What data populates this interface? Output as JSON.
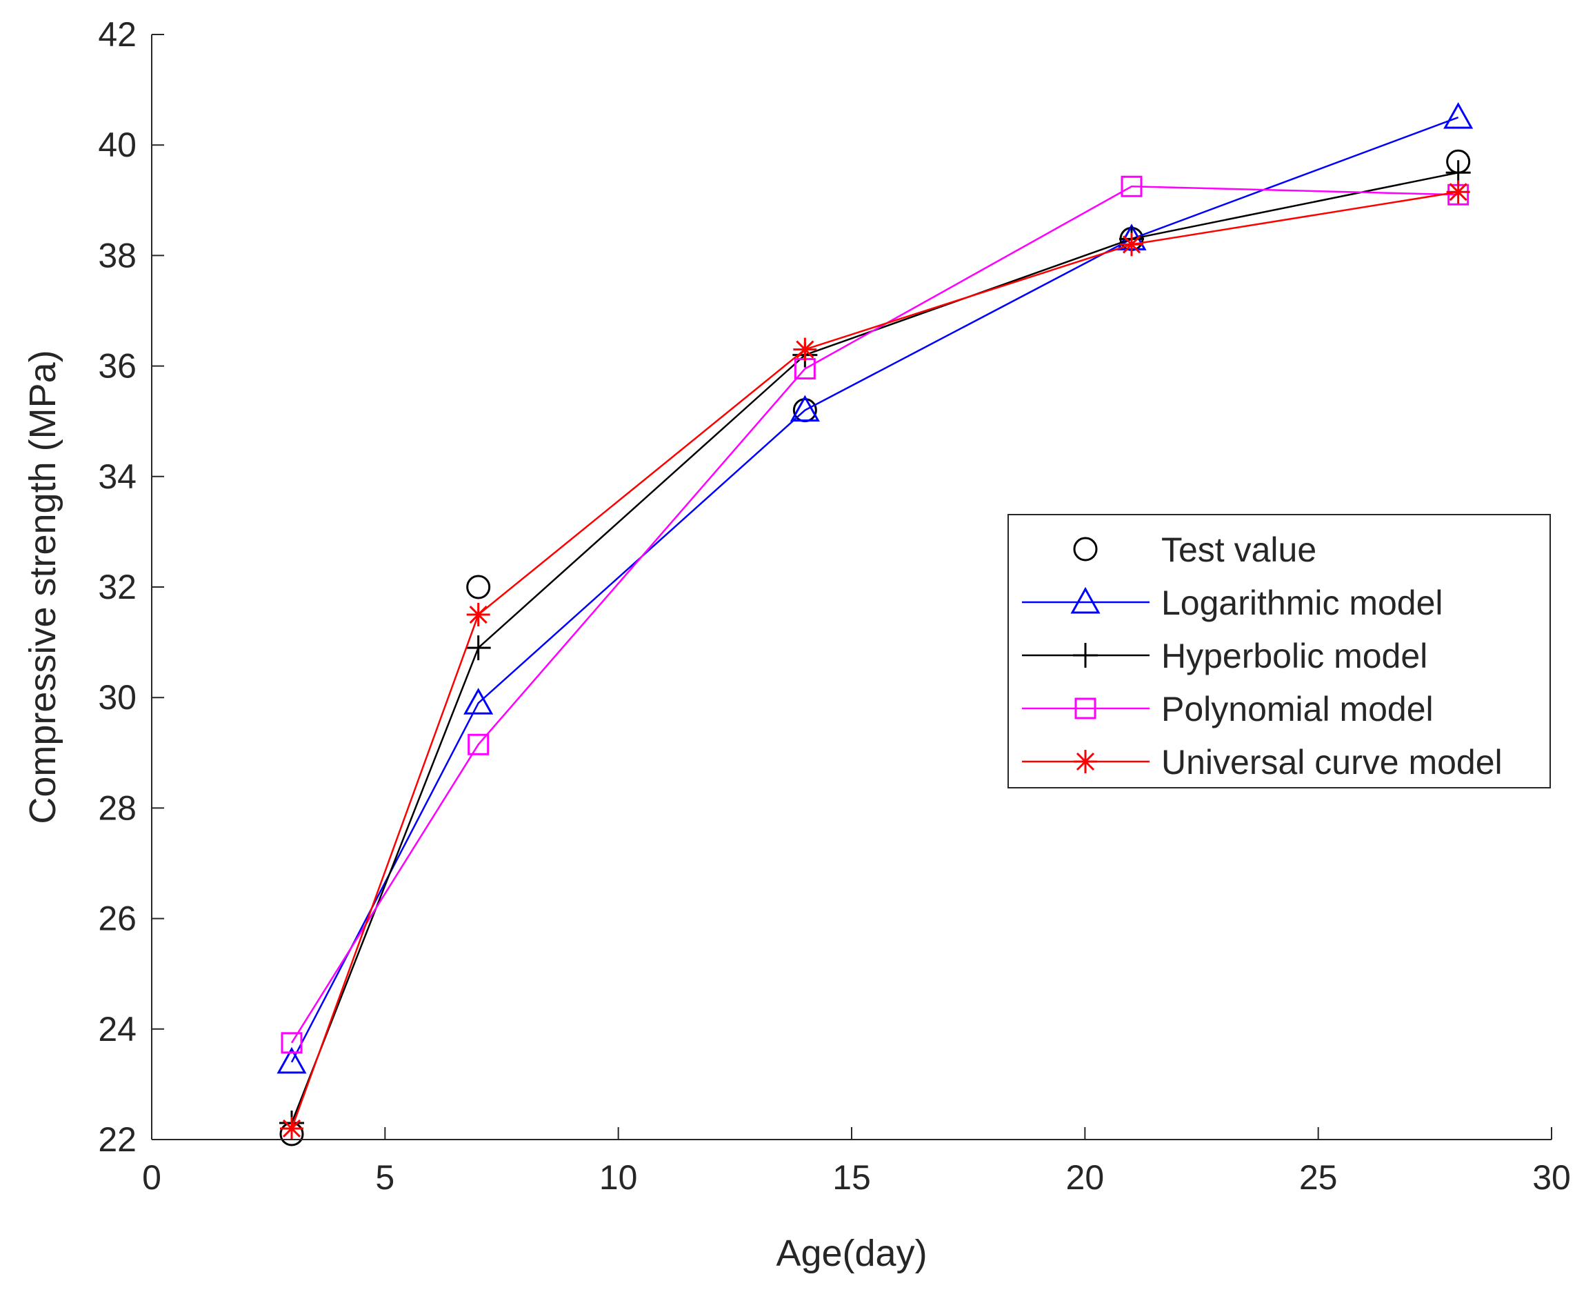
{
  "chart_data": {
    "type": "line",
    "title": "",
    "xlabel": "Age(day)",
    "ylabel": "Compressive strength (MPa)",
    "xlim": [
      0,
      30
    ],
    "ylim": [
      22,
      42
    ],
    "xticks": [
      0,
      5,
      10,
      15,
      20,
      25,
      30
    ],
    "yticks": [
      22,
      24,
      26,
      28,
      30,
      32,
      34,
      36,
      38,
      40,
      42
    ],
    "grid": false,
    "legend_position": "center-right",
    "x": [
      3,
      7,
      14,
      21,
      28
    ],
    "series": [
      {
        "name": "Test value",
        "values": [
          22.1,
          32.0,
          35.2,
          38.3,
          39.7
        ],
        "color": "#000000",
        "marker": "circle",
        "line": false
      },
      {
        "name": "Logarithmic model",
        "values": [
          23.4,
          29.9,
          35.2,
          38.3,
          40.5
        ],
        "color": "#0000ff",
        "marker": "triangle",
        "line": true
      },
      {
        "name": "Hyperbolic model",
        "values": [
          22.3,
          30.9,
          36.2,
          38.3,
          39.5
        ],
        "color": "#000000",
        "marker": "plus",
        "line": true
      },
      {
        "name": "Polynomial model",
        "values": [
          23.75,
          29.15,
          35.95,
          39.25,
          39.1
        ],
        "color": "#ff00ff",
        "marker": "square",
        "line": true
      },
      {
        "name": "Universal curve model",
        "values": [
          22.2,
          31.5,
          36.3,
          38.2,
          39.15
        ],
        "color": "#ff0000",
        "marker": "asterisk",
        "line": true
      }
    ]
  }
}
